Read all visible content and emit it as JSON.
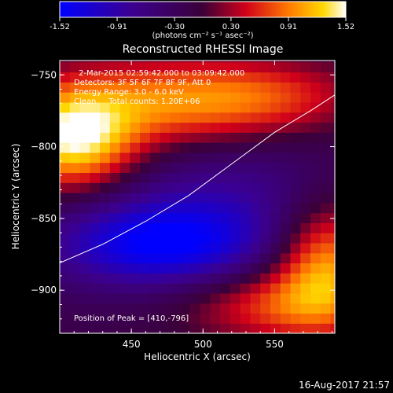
{
  "chart_data": {
    "type": "heatmap",
    "title": "Reconstructed RHESSI Image",
    "xlabel": "Heliocentric X (arcsec)",
    "ylabel": "Heliocentric Y (arcsec)",
    "xlim": [
      400,
      592
    ],
    "ylim": [
      -930,
      -740
    ],
    "x_ticks": [
      450,
      500,
      550
    ],
    "y_ticks": [
      -750,
      -800,
      -850,
      -900
    ],
    "colorbar": {
      "min": -1.52,
      "max": 1.52,
      "ticks": [
        "-1.52",
        "-0.91",
        "-0.30",
        "0.30",
        "0.91",
        "1.52"
      ],
      "unit_label": "(photons cm⁻² s⁻¹ asec⁻²)"
    },
    "annotations": {
      "time": "2-Mar-2015 02:59:42.000 to 03:09:42.000",
      "detectors": "Detectors: 3F 5F 6F 7F 8F 9F, Att 0",
      "energy": "Energy Range: 3.0 - 6.0 keV",
      "method": "Clean     Total counts: 1.20E+06",
      "peak": "Position of Peak = [410,-796]"
    },
    "limb_curve": {
      "x": [
        400,
        430,
        460,
        490,
        520,
        550,
        575,
        592
      ],
      "y": [
        -881,
        -868,
        -852,
        -834,
        -812,
        -790,
        -775,
        -764
      ]
    },
    "features": [
      {
        "kind": "peak",
        "x": 410,
        "y": -796,
        "amp": 1.52,
        "sx": 30,
        "sy": 24
      },
      {
        "kind": "bright",
        "x": 470,
        "y": -770,
        "amp": 0.95,
        "sx": 60,
        "sy": 22
      },
      {
        "kind": "bright",
        "x": 545,
        "y": -765,
        "amp": 0.6,
        "sx": 50,
        "sy": 18
      },
      {
        "kind": "bright",
        "x": 585,
        "y": -880,
        "amp": 1.2,
        "sx": 25,
        "sy": 30
      },
      {
        "kind": "bright",
        "x": 550,
        "y": -910,
        "amp": 0.8,
        "sx": 45,
        "sy": 18
      },
      {
        "kind": "dark",
        "x": 470,
        "y": -868,
        "amp": -1.3,
        "sx": 55,
        "sy": 22
      },
      {
        "kind": "dark",
        "x": 520,
        "y": -830,
        "amp": -0.5,
        "sx": 60,
        "sy": 30
      }
    ]
  },
  "footer": {
    "timestamp": "16-Aug-2017 21:57"
  }
}
